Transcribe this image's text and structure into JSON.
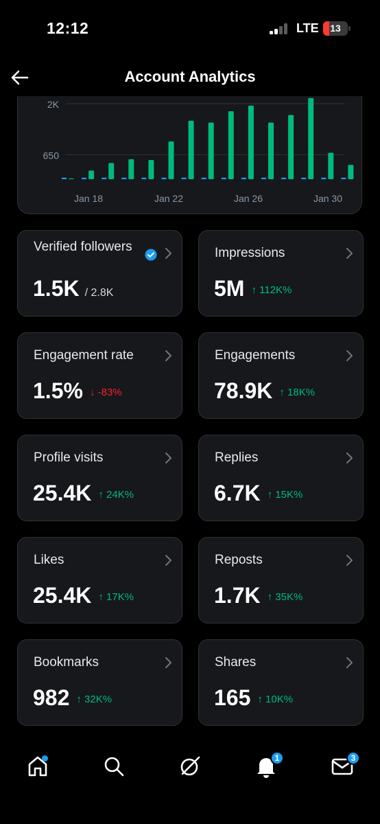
{
  "status_bar": {
    "time": "12:12",
    "network": "LTE",
    "battery": "13"
  },
  "header": {
    "title": "Account Analytics"
  },
  "chart_data": {
    "type": "bar",
    "title": "",
    "xlabel": "",
    "ylabel": "",
    "y_ticks": [
      "2K",
      "650"
    ],
    "y_tick_values": [
      2000,
      650
    ],
    "x_tick_labels": [
      "Jan 18",
      "Jan 22",
      "Jan 26",
      "Jan 30"
    ],
    "categories": [
      "Jan 17",
      "Jan 18",
      "Jan 19",
      "Jan 20",
      "Jan 21",
      "Jan 22",
      "Jan 23",
      "Jan 24",
      "Jan 25",
      "Jan 26",
      "Jan 27",
      "Jan 28",
      "Jan 29",
      "Jan 30",
      "Jan 31"
    ],
    "series": [
      {
        "values": [
          20,
          230,
          430,
          530,
          510,
          1000,
          1550,
          1500,
          1800,
          1950,
          1500,
          1700,
          2150,
          700,
          380
        ],
        "color": "#00ba7c"
      },
      {
        "values": [
          40,
          40,
          40,
          40,
          40,
          40,
          40,
          40,
          40,
          40,
          40,
          40,
          40,
          40,
          40
        ],
        "color": "#1d9bf0"
      }
    ],
    "ylim": [
      0,
      2200
    ],
    "grid": true
  },
  "metrics": [
    {
      "label": "Verified followers",
      "value": "1.5K",
      "sub": "/ 2.8K",
      "delta": "",
      "direction": ""
    },
    {
      "label": "Impressions",
      "value": "5M",
      "sub": "",
      "delta": "↑ 112K%",
      "direction": "up"
    },
    {
      "label": "Engagement rate",
      "value": "1.5%",
      "sub": "",
      "delta": "↓ -83%",
      "direction": "down"
    },
    {
      "label": "Engagements",
      "value": "78.9K",
      "sub": "",
      "delta": "↑ 18K%",
      "direction": "up"
    },
    {
      "label": "Profile visits",
      "value": "25.4K",
      "sub": "",
      "delta": "↑ 24K%",
      "direction": "up"
    },
    {
      "label": "Replies",
      "value": "6.7K",
      "sub": "",
      "delta": "↑ 15K%",
      "direction": "up"
    },
    {
      "label": "Likes",
      "value": "25.4K",
      "sub": "",
      "delta": "↑ 17K%",
      "direction": "up"
    },
    {
      "label": "Reposts",
      "value": "1.7K",
      "sub": "",
      "delta": "↑ 35K%",
      "direction": "up"
    },
    {
      "label": "Bookmarks",
      "value": "982",
      "sub": "",
      "delta": "↑ 32K%",
      "direction": "up"
    },
    {
      "label": "Shares",
      "value": "165",
      "sub": "",
      "delta": "↑ 10K%",
      "direction": "up"
    }
  ],
  "nav": {
    "items": [
      "home-icon",
      "search-icon",
      "grok-icon",
      "notifications-icon",
      "messages-icon"
    ],
    "notifications_badge": "1",
    "messages_badge": "3"
  },
  "colors": {
    "accent": "#1d9bf0",
    "positive": "#00ba7c",
    "negative": "#f4212e",
    "card_bg": "#16181c",
    "border": "#2f3336"
  }
}
